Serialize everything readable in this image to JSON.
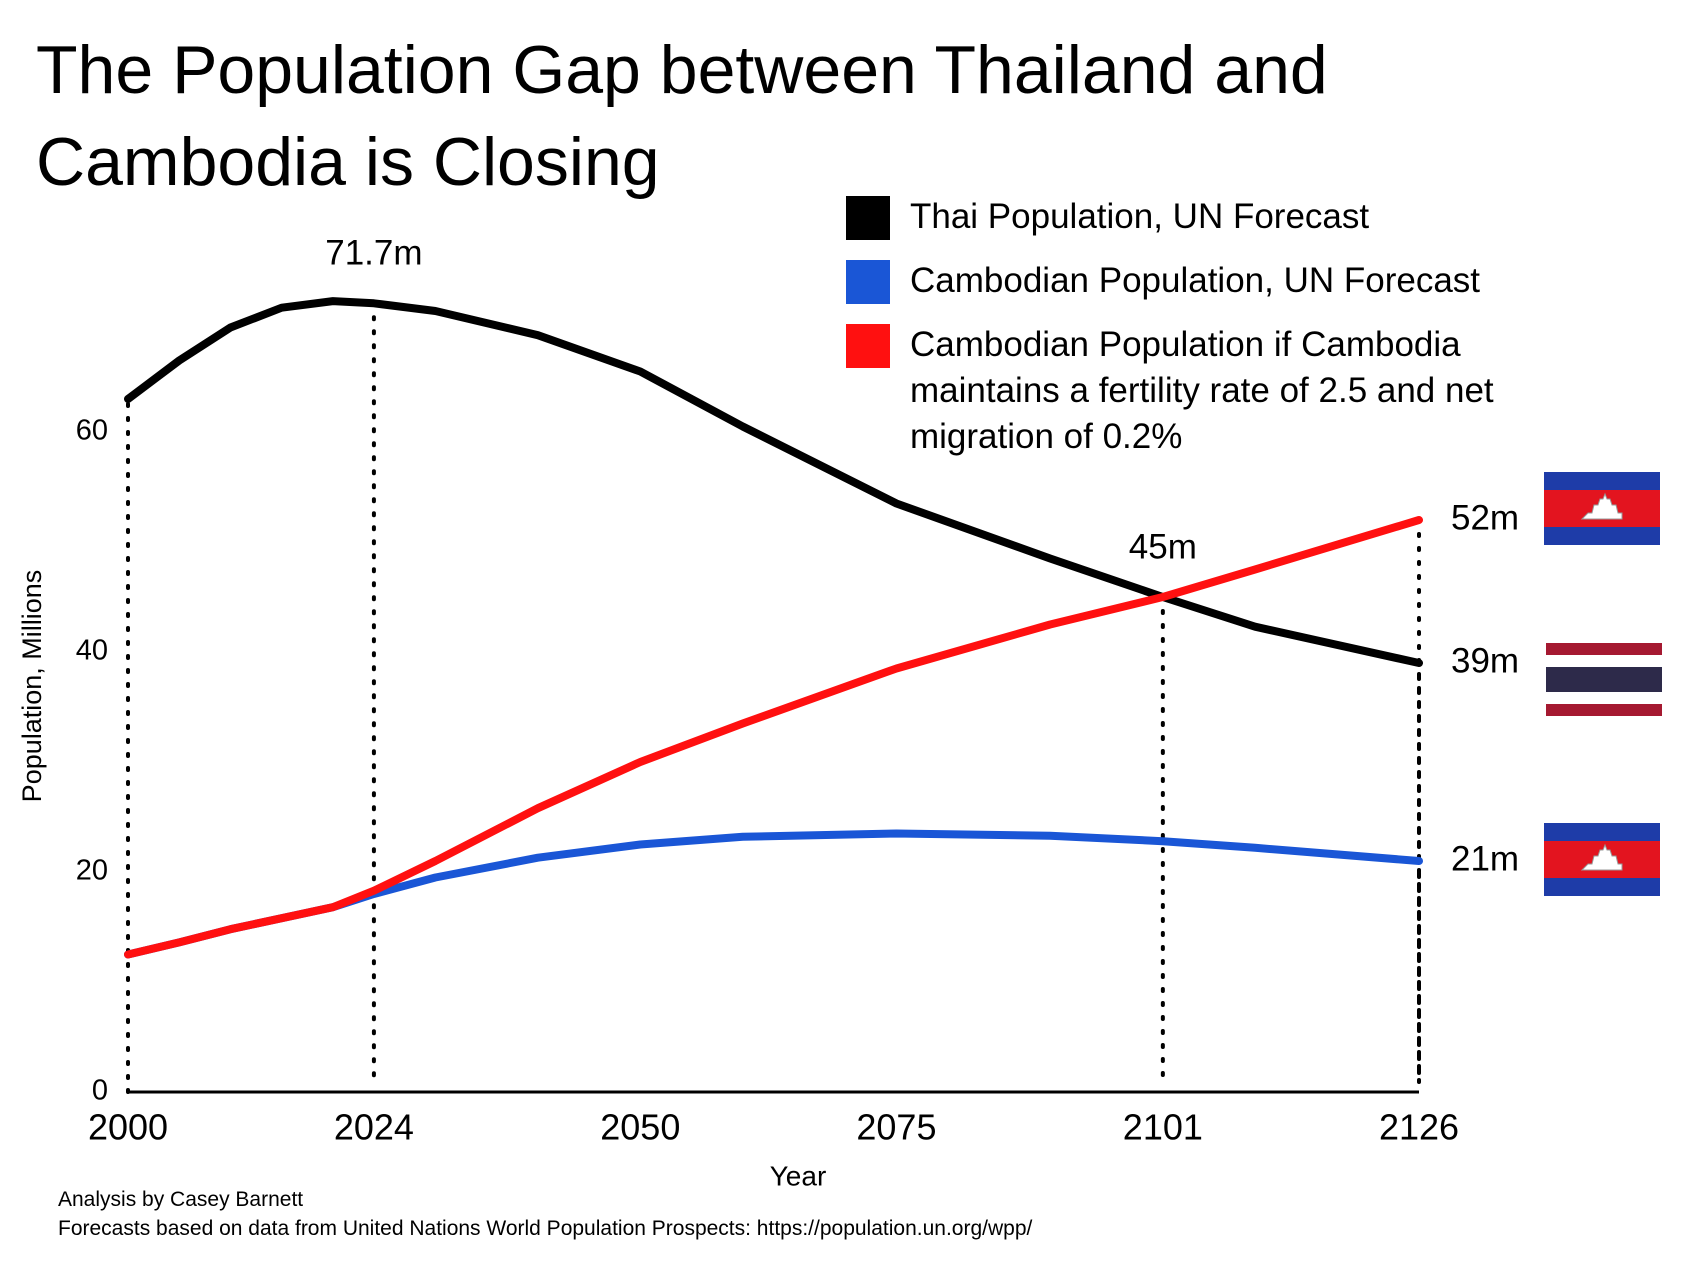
{
  "chart_data": {
    "type": "line",
    "title": "The Population Gap between Thailand and Cambodia is Closing",
    "x_label": "Year",
    "y_label": "Population, Millions",
    "x": [
      2000,
      2005,
      2010,
      2015,
      2020,
      2024,
      2030,
      2040,
      2050,
      2060,
      2075,
      2090,
      2101,
      2110,
      2126
    ],
    "series": [
      {
        "name": "Thai Population, UN Forecast",
        "color": "#000000",
        "values": [
          63,
          66.5,
          69.5,
          71.3,
          71.9,
          71.7,
          71,
          68.8,
          65.5,
          60.5,
          53.5,
          48.5,
          45,
          42.3,
          39
        ]
      },
      {
        "name": "Cambodian Population, UN Forecast",
        "color": "#1a56d6",
        "values": [
          12.5,
          13.6,
          14.8,
          15.8,
          16.8,
          18,
          19.5,
          21.3,
          22.5,
          23.2,
          23.5,
          23.3,
          22.8,
          22.2,
          21
        ]
      },
      {
        "name": "Cambodian Population if Cambodia maintains a fertility rate of 2.5 and net migration of 0.2%",
        "color": "#ff1010",
        "values": [
          12.5,
          13.6,
          14.8,
          15.8,
          16.8,
          18.3,
          21,
          25.8,
          30,
          33.5,
          38.5,
          42.5,
          45,
          47.5,
          52
        ]
      }
    ],
    "xlim": [
      2000,
      2126
    ],
    "xticks": [
      2000,
      2024,
      2050,
      2075,
      2101,
      2126
    ],
    "ylim": [
      0,
      72
    ],
    "yticks": [
      0,
      20,
      40,
      60
    ],
    "annotations": [
      {
        "text": "71.7m",
        "x": 2024,
        "y": 71.7
      },
      {
        "text": "45m",
        "x": 2101,
        "y": 45
      },
      {
        "text": "52m",
        "x": 2126,
        "y": 52
      },
      {
        "text": "39m",
        "x": 2126,
        "y": 39
      },
      {
        "text": "21m",
        "x": 2126,
        "y": 21
      }
    ],
    "footnotes": [
      "Analysis by Casey Barnett",
      "Forecasts based on data from United Nations World Population Prospects: https://population.un.org/wpp/"
    ]
  }
}
